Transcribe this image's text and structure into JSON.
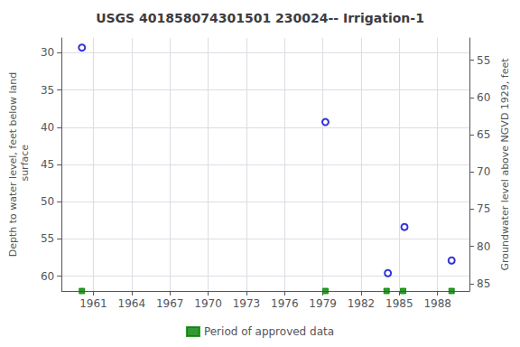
{
  "chart_data": {
    "type": "scatter",
    "title": "USGS 401858074301501 230024-- Irrigation-1",
    "ylabel": "Depth to water level, feet below land\n surface",
    "y2label": "Groundwater level above NGVD 1929, feet",
    "xlim": [
      1958.5,
      1990.5
    ],
    "xticks": [
      1961,
      1964,
      1967,
      1970,
      1973,
      1976,
      1979,
      1982,
      1985,
      1988
    ],
    "ylim": [
      62,
      28
    ],
    "yticks": [
      30,
      35,
      40,
      45,
      50,
      55,
      60
    ],
    "y2lim": [
      86,
      52
    ],
    "y2ticks": [
      85,
      80,
      75,
      70,
      65,
      60,
      55
    ],
    "grid": true,
    "legend": "bottom",
    "series": [
      {
        "x": [
          1960.1,
          1979.2,
          1984.1,
          1985.4,
          1989.1
        ],
        "values": [
          29.3,
          39.3,
          59.6,
          53.4,
          57.9
        ],
        "color": "#0000cc",
        "marker": "open_circle"
      },
      {
        "name": "Period of approved data",
        "x": [
          1960.1,
          1979.2,
          1984.0,
          1985.3,
          1989.1
        ],
        "values": [
          62,
          62,
          62,
          62,
          62
        ],
        "color": "#008000",
        "marker": "square"
      }
    ]
  }
}
